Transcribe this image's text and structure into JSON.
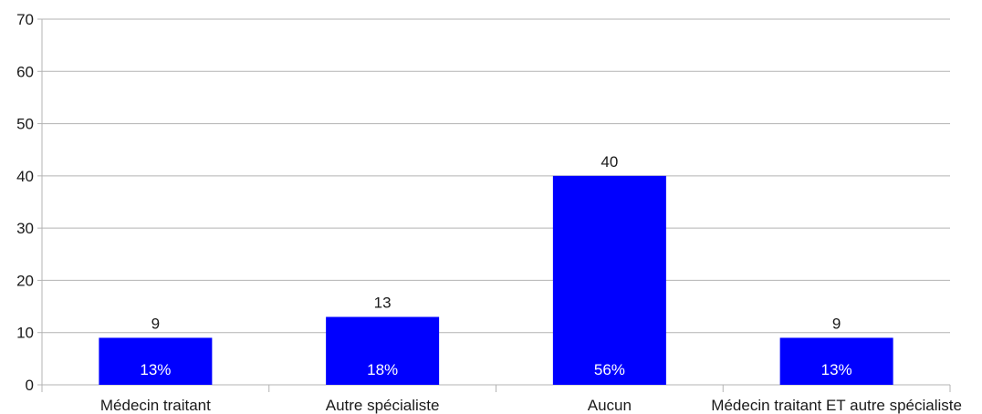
{
  "chart_data": {
    "type": "bar",
    "categories": [
      "Médecin traitant",
      "Autre spécialiste",
      "Aucun",
      "Médecin traitant ET autre spécialiste"
    ],
    "values": [
      9,
      13,
      40,
      9
    ],
    "percent_labels": [
      "13%",
      "18%",
      "56%",
      "13%"
    ],
    "value_labels": [
      "9",
      "13",
      "40",
      "9"
    ],
    "yticks": [
      "0",
      "10",
      "20",
      "30",
      "40",
      "50",
      "60",
      "70"
    ],
    "ylim": [
      0,
      70
    ],
    "title": "",
    "xlabel": "",
    "ylabel": "",
    "grid": true,
    "legend": "none",
    "colors": {
      "bar": "#0000ff",
      "grid": "#b3b3b3",
      "axis": "#b3b3b3",
      "text": "#1a1a1a",
      "bar_text": "#ffffff"
    }
  }
}
